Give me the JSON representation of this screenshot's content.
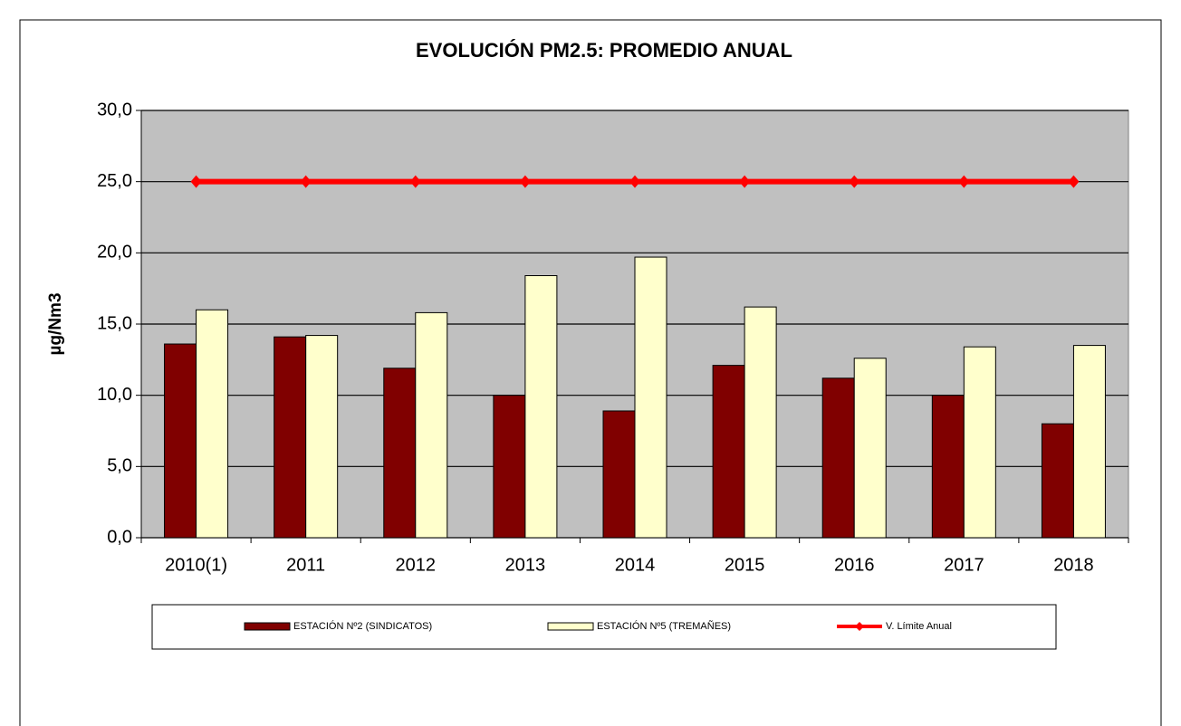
{
  "chart_data": {
    "type": "bar",
    "title": "EVOLUCIÓN PM2.5: PROMEDIO ANUAL",
    "y_label": "µg/Nm3",
    "categories": [
      "2010(1)",
      "2011",
      "2012",
      "2013",
      "2014",
      "2015",
      "2016",
      "2017",
      "2018"
    ],
    "series": [
      {
        "name": "ESTACIÓN Nº2 (SINDICATOS)",
        "color": "#800000",
        "values": [
          13.6,
          14.1,
          11.9,
          10.0,
          8.9,
          12.1,
          11.2,
          10.0,
          8.0
        ]
      },
      {
        "name": "ESTACIÓN Nº5 (TREMAÑES)",
        "color": "#ffffcc",
        "values": [
          16.0,
          14.2,
          15.8,
          18.4,
          19.7,
          16.2,
          12.6,
          13.4,
          13.5
        ]
      },
      {
        "name": "V. Límite Anual",
        "type": "line",
        "color": "#ff0000",
        "values": [
          25,
          25,
          25,
          25,
          25,
          25,
          25,
          25,
          25
        ]
      }
    ],
    "ylim": [
      0,
      30
    ],
    "yticks": [
      {
        "value": 0,
        "label": "0,0"
      },
      {
        "value": 5,
        "label": "5,0"
      },
      {
        "value": 10,
        "label": "10,0"
      },
      {
        "value": 15,
        "label": "15,0"
      },
      {
        "value": 20,
        "label": "20,0"
      },
      {
        "value": 25,
        "label": "25,0"
      },
      {
        "value": 30,
        "label": "30,0"
      }
    ],
    "grid": true,
    "legend": "bottom"
  }
}
